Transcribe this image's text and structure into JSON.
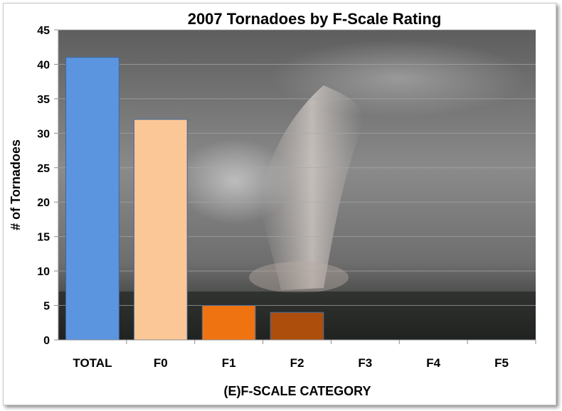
{
  "chart_data": {
    "type": "bar",
    "title": "2007 Tornadoes by F-Scale Rating",
    "xlabel": "(E)F-SCALE CATEGORY",
    "ylabel": "# of Tornadoes",
    "categories": [
      "TOTAL",
      "F0",
      "F1",
      "F2",
      "F3",
      "F4",
      "F5"
    ],
    "values": [
      41,
      32,
      5,
      4,
      0,
      0,
      0
    ],
    "ylim": [
      0,
      45
    ],
    "yticks": [
      0,
      5,
      10,
      15,
      20,
      25,
      30,
      35,
      40,
      45
    ],
    "grid": true,
    "legend": "none",
    "bar_colors": [
      "#5b95e0",
      "#fcc796",
      "#ef7311",
      "#ad4e0c",
      "#888888",
      "#888888",
      "#888888"
    ]
  }
}
